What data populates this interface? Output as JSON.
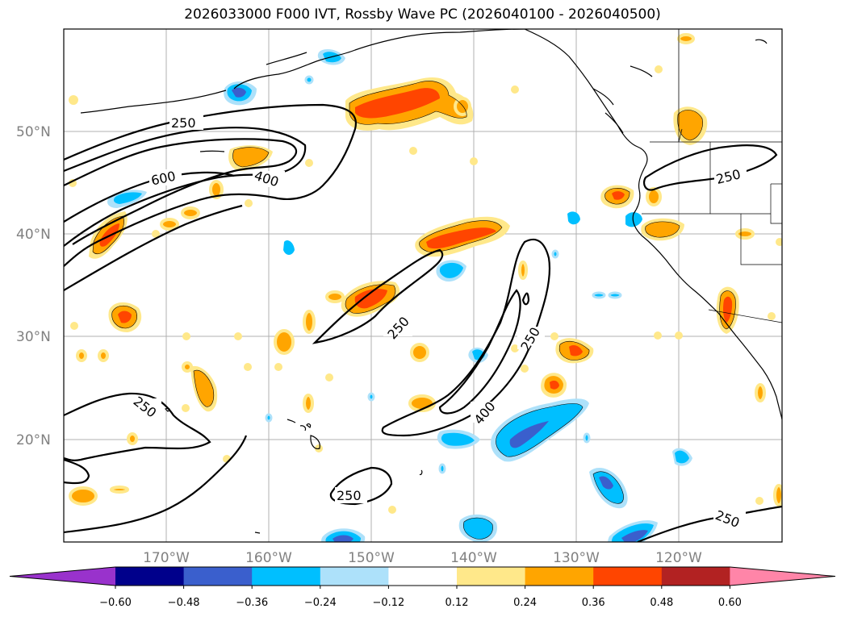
{
  "title": "2026033000 F000 IVT, Rossby Wave PC (2026040100 - 2026040500)",
  "lat_labels": [
    "50°N",
    "40°N",
    "30°N",
    "20°N"
  ],
  "lon_labels": [
    "170°W",
    "160°W",
    "150°W",
    "140°W",
    "130°W",
    "120°W"
  ],
  "contour_labels": [
    "250",
    "600",
    "400",
    "250",
    "250",
    "400",
    "250",
    "250",
    "250",
    "250"
  ],
  "colorbar": {
    "labels": [
      "−0.60",
      "−0.48",
      "−0.36",
      "−0.24",
      "−0.12",
      "0.12",
      "0.24",
      "0.36",
      "0.48",
      "0.60"
    ],
    "colors": [
      "#9932CC",
      "#00008B",
      "#3A5FCD",
      "#00BFFF",
      "#ADE1FA",
      "#FFFFFF",
      "#FFE88A",
      "#FFA500",
      "#FF4500",
      "#B22222",
      "#FF85A8"
    ]
  }
}
